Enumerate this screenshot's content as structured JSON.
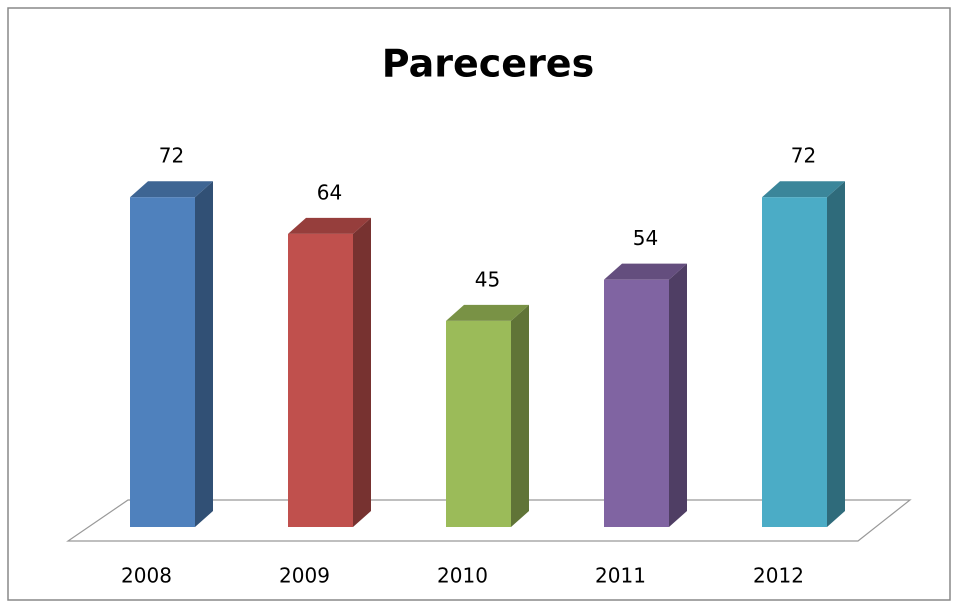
{
  "chart_data": {
    "type": "bar3d",
    "title": "Pareceres",
    "categories": [
      "2008",
      "2009",
      "2010",
      "2011",
      "2012"
    ],
    "values": [
      72,
      64,
      45,
      54,
      72
    ],
    "colors": [
      "#4F81BD",
      "#C0504D",
      "#9BBB59",
      "#8064A2",
      "#4BACC6"
    ],
    "data_labels": true
  }
}
